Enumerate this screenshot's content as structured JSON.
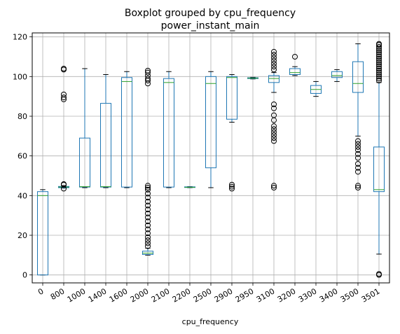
{
  "chart_data": {
    "type": "boxplot",
    "title": "Boxplot grouped by cpu_frequency",
    "subtitle": "power_instant_main",
    "xlabel": "cpu_frequency",
    "ylabel": "",
    "ylim": [
      -4,
      122
    ],
    "yticks": [
      0,
      20,
      40,
      60,
      80,
      100,
      120
    ],
    "grid": true,
    "colors": {
      "box": "#1f77b4",
      "median": "#2ca02c",
      "whisker": "#1f77b4",
      "flier": "#000000",
      "grid": "#b0b0b0"
    },
    "categories": [
      "0",
      "800",
      "1000",
      "1400",
      "1600",
      "2000",
      "2100",
      "2200",
      "2500",
      "2900",
      "2950",
      "3100",
      "3200",
      "3300",
      "3400",
      "3500",
      "3501"
    ],
    "boxes": [
      {
        "label": "0",
        "whislo": 0,
        "q1": 0,
        "med": 40,
        "q3": 42,
        "whishi": 43,
        "fliers": []
      },
      {
        "label": "800",
        "whislo": 43.8,
        "q1": 44,
        "med": 44.3,
        "q3": 44.6,
        "whishi": 45,
        "fliers": [
          43.5,
          45.5,
          45.8,
          88.5,
          89.5,
          91,
          103.5,
          104
        ]
      },
      {
        "label": "1000",
        "whislo": 44,
        "q1": 44.3,
        "med": 44.5,
        "q3": 69,
        "whishi": 104,
        "fliers": []
      },
      {
        "label": "1400",
        "whislo": 44,
        "q1": 44.3,
        "med": 44.5,
        "q3": 86.5,
        "whishi": 101,
        "fliers": []
      },
      {
        "label": "1600",
        "whislo": 44,
        "q1": 44.3,
        "med": 97.5,
        "q3": 99.5,
        "whishi": 102.5,
        "fliers": []
      },
      {
        "label": "2000",
        "whislo": 10,
        "q1": 10.3,
        "med": 11,
        "q3": 12,
        "whishi": 13.5,
        "fliers": [
          14.5,
          16,
          17.5,
          19,
          21,
          23,
          25,
          27,
          29,
          31,
          33,
          35,
          37,
          39,
          41,
          43,
          44,
          45,
          96.5,
          98,
          99,
          100.5,
          102,
          103
        ]
      },
      {
        "label": "2100",
        "whislo": 44,
        "q1": 44.3,
        "med": 97,
        "q3": 99,
        "whishi": 102.5,
        "fliers": []
      },
      {
        "label": "2200",
        "whislo": 44,
        "q1": 44.1,
        "med": 44.2,
        "q3": 44.4,
        "whishi": 44.5,
        "fliers": []
      },
      {
        "label": "2500",
        "whislo": 44,
        "q1": 54,
        "med": 96.5,
        "q3": 100,
        "whishi": 102.5,
        "fliers": []
      },
      {
        "label": "2900",
        "whislo": 77,
        "q1": 78.5,
        "med": 99.5,
        "q3": 100,
        "whishi": 101,
        "fliers": [
          43.5,
          44.5,
          45.5
        ]
      },
      {
        "label": "2950",
        "whislo": 98.8,
        "q1": 99,
        "med": 99.2,
        "q3": 99.4,
        "whishi": 99.6,
        "fliers": []
      },
      {
        "label": "3100",
        "whislo": 92,
        "q1": 97,
        "med": 99,
        "q3": 100.5,
        "whishi": 102,
        "fliers": [
          44,
          45,
          67.5,
          69,
          70.5,
          72,
          73.5,
          75,
          78,
          80.5,
          84,
          86,
          103.5,
          105,
          106.5,
          108,
          109.5,
          111,
          112.5
        ]
      },
      {
        "label": "3200",
        "whislo": 100.5,
        "q1": 101,
        "med": 102,
        "q3": 104,
        "whishi": 105,
        "fliers": [
          110
        ]
      },
      {
        "label": "3300",
        "whislo": 90,
        "q1": 91.5,
        "med": 93.5,
        "q3": 95.5,
        "whishi": 97.5,
        "fliers": []
      },
      {
        "label": "3400",
        "whislo": 97.5,
        "q1": 99.5,
        "med": 100.5,
        "q3": 102.5,
        "whishi": 103.5,
        "fliers": []
      },
      {
        "label": "3500",
        "whislo": 70,
        "q1": 92,
        "med": 96.5,
        "q3": 107.5,
        "whishi": 116.5,
        "fliers": [
          44,
          45,
          52,
          54,
          56,
          59,
          61,
          63,
          64.5,
          66,
          67.5
        ]
      },
      {
        "label": "3501",
        "whislo": 10.5,
        "q1": 42,
        "med": 43,
        "q3": 64.5,
        "whishi": 97,
        "fliers": [
          0,
          0.5,
          98,
          99,
          100,
          101,
          102,
          103,
          104,
          105,
          106,
          107,
          108,
          109,
          110,
          111,
          112,
          113,
          114,
          115,
          116,
          116.5
        ]
      }
    ]
  }
}
